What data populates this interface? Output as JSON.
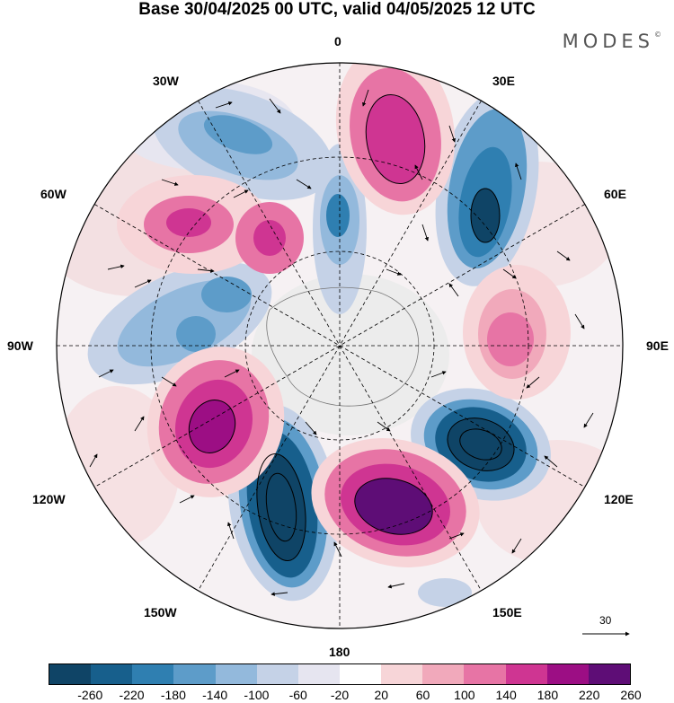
{
  "header": {
    "title": "Base 30/04/2025 00 UTC, valid 04/05/2025 12 UTC",
    "brand": "MODES",
    "brand_mark": "©"
  },
  "map": {
    "longitude_labels": {
      "top": "0",
      "top_right": "30E",
      "right_upper": "60E",
      "right": "90E",
      "right_lower": "120E",
      "bottom_right": "150E",
      "bottom": "180",
      "bottom_left": "150W",
      "left_lower": "120W",
      "left": "90W",
      "left_upper": "60W",
      "top_left": "30W"
    },
    "reference_vector": "30"
  },
  "colorbar": {
    "colors": [
      "#0f4466",
      "#175f8c",
      "#2f7fb1",
      "#5d9cc9",
      "#93b9dc",
      "#c5d2e7",
      "#e6e5f0",
      "#ffffff",
      "#f7d5d8",
      "#f1a9bb",
      "#e774a5",
      "#cf3592",
      "#9c0e84",
      "#5e0d76"
    ],
    "tick_labels": [
      "-260",
      "-220",
      "-180",
      "-140",
      "-100",
      "-60",
      "-20",
      "20",
      "60",
      "100",
      "140",
      "180",
      "220",
      "260"
    ]
  }
}
